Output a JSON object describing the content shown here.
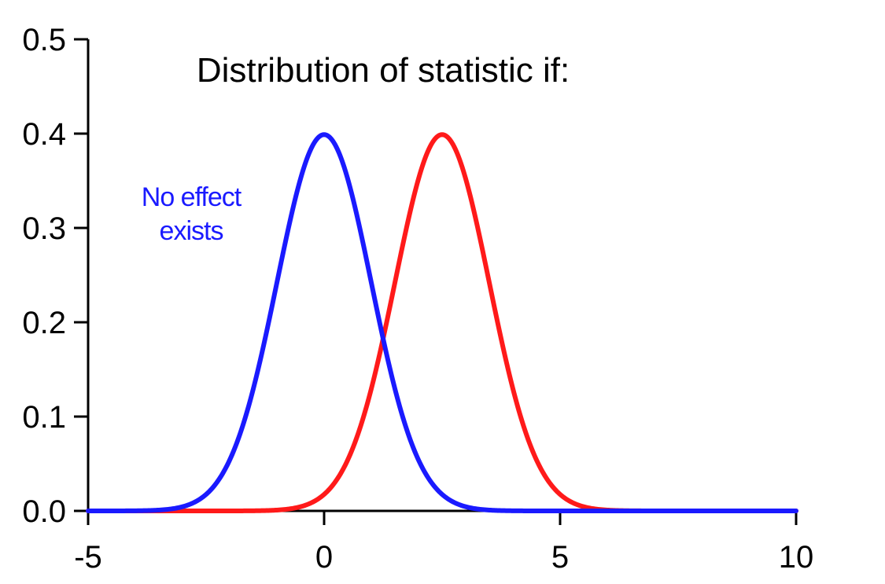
{
  "chart_data": {
    "type": "line",
    "title": "Distribution of statistic if:",
    "xlabel": "",
    "ylabel": "",
    "xlim": [
      -5,
      10
    ],
    "ylim": [
      0,
      0.5
    ],
    "x_ticks": [
      -5,
      0,
      5,
      10
    ],
    "x_tick_labels": [
      "-5",
      "0",
      "5",
      "10"
    ],
    "y_ticks": [
      0,
      0.1,
      0.2,
      0.3,
      0.4,
      0.5
    ],
    "y_tick_labels": [
      "0.0",
      "0.1",
      "0.2",
      "0.3",
      "0.4",
      "0.5"
    ],
    "grid": false,
    "legend": "none",
    "series": [
      {
        "color": "#1a1aff",
        "curve": "normal",
        "mean": 0,
        "sd": 1,
        "x": [
          -5,
          -4,
          -3,
          -2.5,
          -2,
          -1.5,
          -1,
          -0.5,
          0,
          0.5,
          1,
          1.5,
          2,
          2.5,
          3,
          4,
          5,
          10
        ],
        "y": [
          0.0,
          0.0001,
          0.0044,
          0.0175,
          0.054,
          0.1295,
          0.242,
          0.3521,
          0.3989,
          0.3521,
          0.242,
          0.1295,
          0.054,
          0.0175,
          0.0044,
          0.0001,
          0.0,
          0.0
        ]
      },
      {
        "color": "#ff1a1a",
        "curve": "normal",
        "mean": 2.5,
        "sd": 1,
        "x": [
          -5,
          -1,
          0,
          0.5,
          1,
          1.5,
          2,
          2.5,
          3,
          3.5,
          4,
          4.5,
          5,
          6,
          7,
          10
        ],
        "y": [
          0.0,
          0.0009,
          0.0175,
          0.054,
          0.1295,
          0.242,
          0.3521,
          0.3989,
          0.3521,
          0.242,
          0.1295,
          0.054,
          0.0175,
          0.0009,
          0.0,
          0.0
        ]
      }
    ],
    "annotations": [
      {
        "lines": [
          "No effect",
          "exists"
        ],
        "color": "#1a1aff"
      }
    ]
  }
}
